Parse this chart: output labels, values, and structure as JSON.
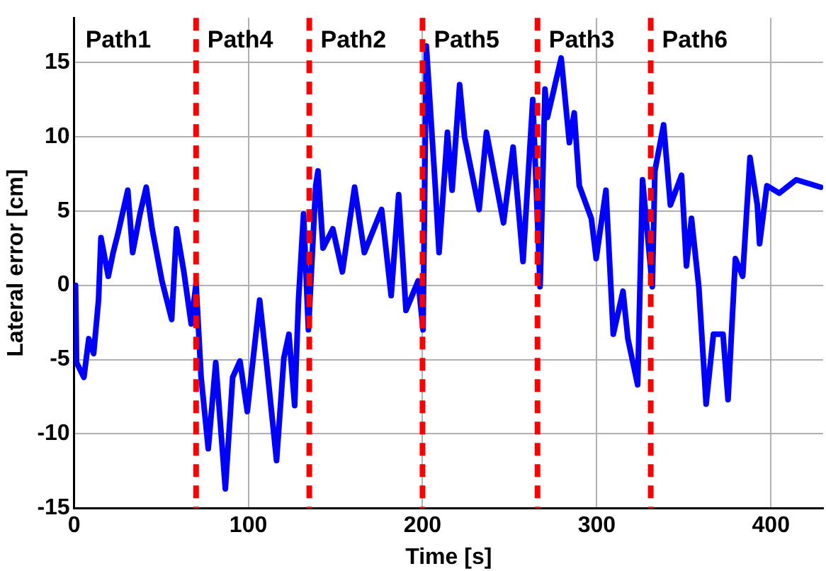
{
  "chart_data": {
    "type": "line",
    "xlabel": "Time [s]",
    "ylabel": "Lateral error [cm]",
    "xlim": [
      0,
      430
    ],
    "xticks": [
      0,
      100,
      200,
      300,
      400
    ],
    "ylim": [
      -15,
      18
    ],
    "yticks": [
      -15,
      -10,
      -5,
      0,
      5,
      10,
      15
    ],
    "grid": true,
    "line_style": "solid",
    "marker": "none",
    "x": [
      0.8,
      1.4,
      5.6,
      8.4,
      11.2,
      14,
      15.4,
      19.6,
      22.4,
      25.2,
      30.8,
      33.6,
      37.8,
      41.4,
      44.8,
      50.4,
      56,
      58.8,
      63,
      67.2,
      70,
      72.9,
      77,
      81.3,
      86.8,
      91,
      95.2,
      99.4,
      106.5,
      110.7,
      116.2,
      120.4,
      123.3,
      126.6,
      128.8,
      131.7,
      134.5,
      138.7,
      140,
      142.9,
      148.5,
      154,
      161,
      166.6,
      176.5,
      182,
      186.3,
      190.5,
      197.5,
      200.3,
      202.2,
      207.3,
      209.5,
      214.3,
      217,
      221.3,
      224.1,
      232.5,
      236.7,
      246.5,
      252,
      257.7,
      263.3,
      267.5,
      270.3,
      271.7,
      279.6,
      284.3,
      287.1,
      290,
      296.9,
      299.7,
      305.3,
      309.5,
      315.1,
      317.9,
      323.5,
      326.3,
      331.9,
      333.4,
      338.4,
      342.3,
      348.7,
      351.5,
      354.4,
      358.6,
      362.8,
      367,
      372.5,
      375.4,
      379.6,
      383.8,
      388,
      392.2,
      393.5,
      397.7,
      404.8,
      414.5,
      428.6
    ],
    "series": [
      {
        "color": "#0000ff",
        "values": [
          0,
          -5.2,
          -6.2,
          -3.6,
          -4.6,
          -1,
          3.2,
          0.6,
          2.2,
          3.5,
          6.4,
          2.2,
          4.8,
          6.6,
          3.8,
          0.3,
          -2.3,
          3.8,
          0.9,
          -2.6,
          0.1,
          -6.2,
          -11,
          -5.2,
          -13.7,
          -6.2,
          -5.1,
          -8.5,
          -1,
          -5.5,
          -11.8,
          -4.9,
          -3.3,
          -8.1,
          -1,
          4.8,
          -3,
          6.7,
          7.7,
          2.5,
          3.8,
          0.9,
          6.6,
          2.2,
          5.1,
          -0.7,
          6.1,
          -1.7,
          0.3,
          -3,
          16.1,
          6.7,
          2.2,
          10.3,
          6.4,
          13.5,
          10,
          5.1,
          10.3,
          4.2,
          9.3,
          1.6,
          12.5,
          -0.1,
          13.2,
          11.3,
          15.3,
          9.6,
          11.6,
          6.7,
          4.5,
          1.8,
          6.4,
          -3.3,
          -0.4,
          -3.6,
          -6.7,
          7.1,
          -0.1,
          7.7,
          10.8,
          5.4,
          7.4,
          1.3,
          4.5,
          -0.1,
          -8,
          -3.3,
          -3.3,
          -7.7,
          1.8,
          0.6,
          8.6,
          5.4,
          2.8,
          6.7,
          6.2,
          7.1,
          6.6
        ]
      }
    ],
    "ref_lines": [
      {
        "axis": "x",
        "value": 70,
        "color": "#ff0000",
        "line_style": "dashed"
      },
      {
        "axis": "x",
        "value": 135,
        "color": "#ff0000",
        "line_style": "dashed"
      },
      {
        "axis": "x",
        "value": 200,
        "color": "#ff0000",
        "line_style": "dashed"
      },
      {
        "axis": "x",
        "value": 266,
        "color": "#ff0000",
        "line_style": "dashed"
      },
      {
        "axis": "x",
        "value": 331,
        "color": "#ff0000",
        "line_style": "dashed"
      }
    ],
    "annotations": [
      "Path1",
      "Path4",
      "Path2",
      "Path5",
      "Path3",
      "Path6"
    ]
  }
}
